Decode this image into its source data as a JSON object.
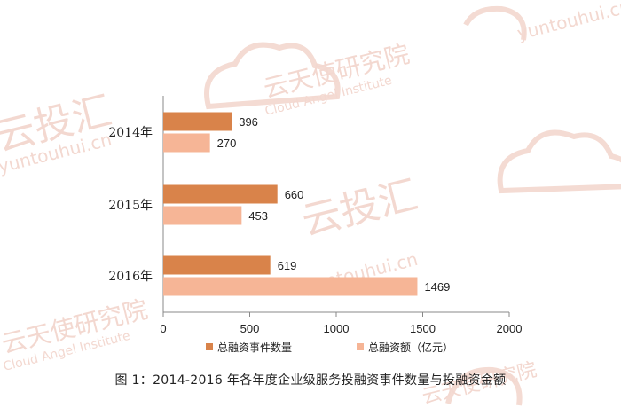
{
  "watermark": {
    "brand_cn": "云投汇",
    "brand_en": "yuntouhui.cn",
    "institute_cn": "云天使研究院",
    "institute_en": "Cloud Angel Institute"
  },
  "caption": "图 1：2014-2016 年各年度企业级服务投融资事件数量与投融资金额",
  "colors": {
    "series_dark": "#d9834a",
    "series_light": "#f6b596",
    "axis": "#888888",
    "watermark": "#f3d8d0"
  },
  "chart_data": {
    "type": "bar",
    "orientation": "horizontal",
    "categories": [
      "2014年",
      "2015年",
      "2016年"
    ],
    "series": [
      {
        "name": "总融资事件数量",
        "values": [
          396,
          660,
          619
        ]
      },
      {
        "name": "总融资额（亿元）",
        "values": [
          270,
          453,
          1469
        ]
      }
    ],
    "xlim": [
      0,
      2000
    ],
    "xticks": [
      0,
      500,
      1000,
      1500,
      2000
    ],
    "grid": false,
    "legend_position": "bottom"
  }
}
